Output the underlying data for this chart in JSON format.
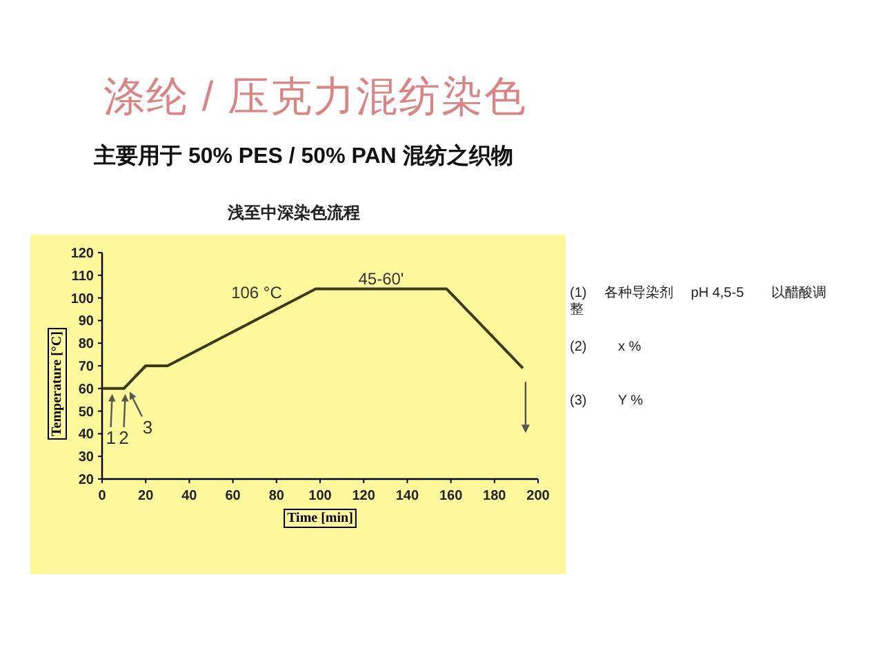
{
  "chart_data": {
    "type": "line",
    "title": "涤纶 / 压克力混纺染色",
    "subtitle": "主要用于 50% PES / 50% PAN 混纺之织物",
    "xlabel": "Time [min]",
    "ylabel": "Temperature [°C]",
    "x": [
      0,
      10,
      20,
      30,
      98,
      158,
      193
    ],
    "series": [
      {
        "color": "#3b3b1a",
        "values": [
          60,
          60,
          70,
          70,
          104,
          104,
          69
        ]
      }
    ],
    "xlim": [
      0,
      200
    ],
    "ylim": [
      20,
      120
    ],
    "xticks": [
      0,
      20,
      40,
      60,
      80,
      100,
      120,
      140,
      160,
      180,
      200
    ],
    "yticks": [
      20,
      30,
      40,
      50,
      60,
      70,
      80,
      90,
      100,
      110,
      120
    ],
    "annotations": [
      "浅至中深染色流程",
      "106 °C",
      {
        "text": "45-60'",
        "x": 128,
        "y": 106
      },
      {
        "text": "1",
        "x": 4,
        "y": 60
      },
      {
        "text": "2",
        "x": 10,
        "y": 60
      },
      {
        "text": "3",
        "x": 12,
        "y": 61
      },
      "(1)　 各种导染剂　 pH 4,5-5　　以醋酸调整",
      "(2)　　 x %",
      "(3)　　 Y %"
    ]
  }
}
